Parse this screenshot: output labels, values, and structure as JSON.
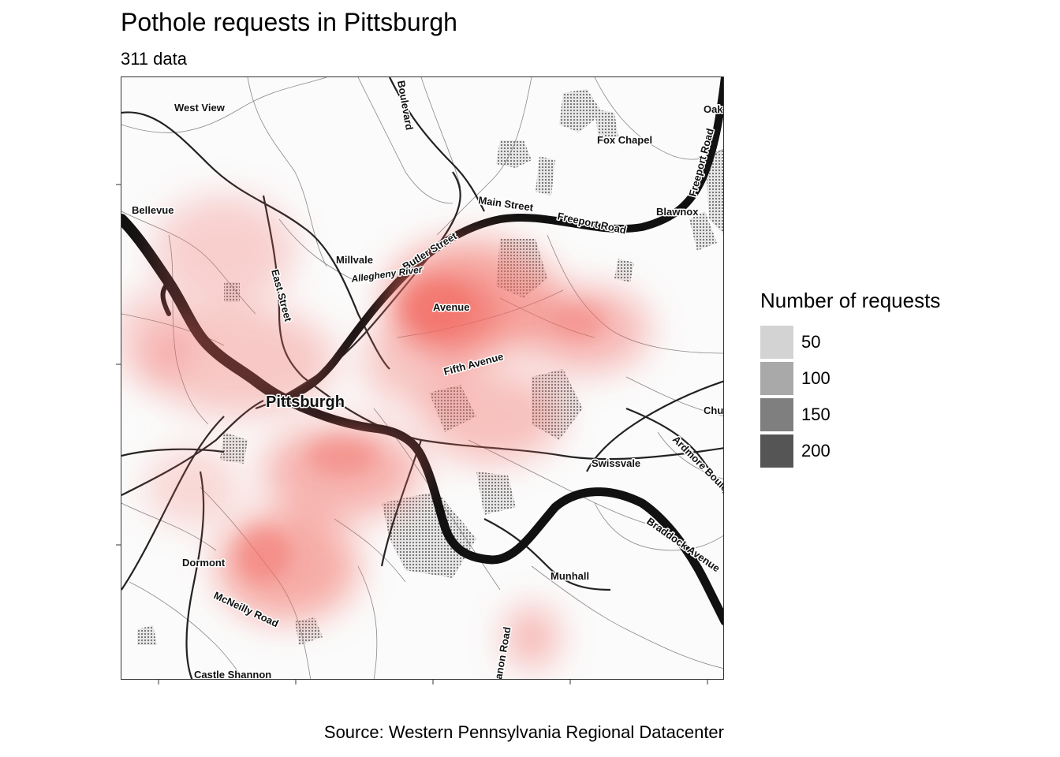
{
  "title": "Pothole requests in Pittsburgh",
  "subtitle": "311 data",
  "caption": "Source: Western Pennsylvania Regional Datacenter",
  "legend": {
    "title": "Number of requests",
    "items": [
      {
        "label": "50",
        "color": "#d3d3d3"
      },
      {
        "label": "100",
        "color": "#a9a9a9"
      },
      {
        "label": "150",
        "color": "#7f7f7f"
      },
      {
        "label": "200",
        "color": "#555555"
      }
    ]
  },
  "density_color": "#f26b63",
  "map_labels": {
    "west_view": "West View",
    "boulevard": "Boulevard",
    "fox_chapel": "Fox Chapel",
    "oak": "Oak",
    "freeport_road_v": "Freeport Road",
    "main_street": "Main Street",
    "freeport_road": "Freeport Road",
    "blawnox": "Blawnox",
    "bellevue": "Bellevue",
    "butler_street": "Butler Street",
    "millvale": "Millvale",
    "allegheny_river": "Allegheny River",
    "east_street": "East Street",
    "avenue": "Avenue",
    "fifth_avenue": "Fifth Avenue",
    "pittsburgh": "Pittsburgh",
    "chu": "Chu",
    "ardmore": "Ardmore Boule",
    "swissvale": "Swissvale",
    "braddock": "Braddock Avenue",
    "dormont": "Dormont",
    "munhall": "Munhall",
    "mcneilly": "McNeilly Road",
    "castle_shannon": "Castle Shannon",
    "canon_road": "anon Road"
  }
}
